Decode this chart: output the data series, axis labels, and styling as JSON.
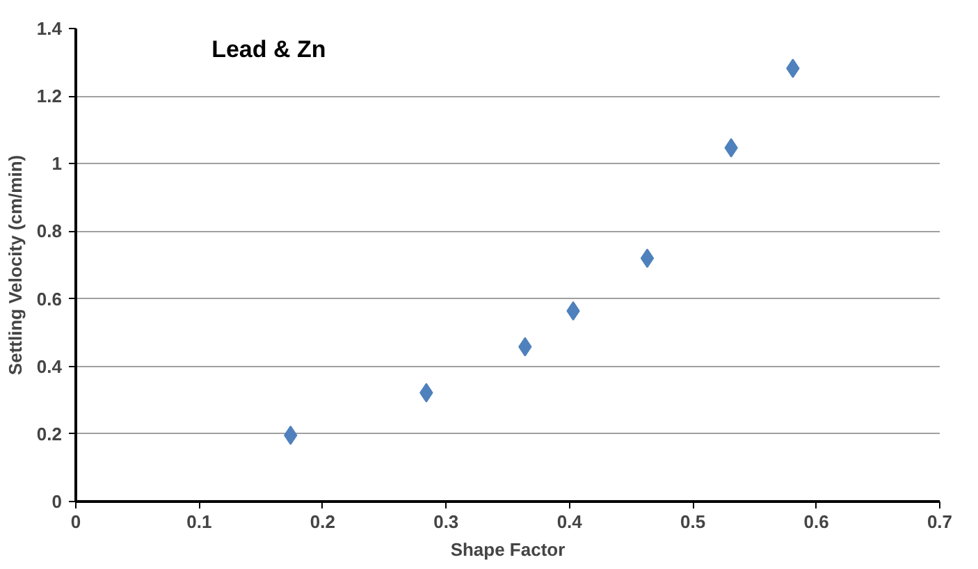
{
  "chart_data": {
    "type": "scatter",
    "title": "Lead & Zn",
    "xlabel": "Shape Factor",
    "ylabel": "Settling Velocity (cm/min)",
    "x": [
      0.174,
      0.284,
      0.364,
      0.403,
      0.463,
      0.531,
      0.581
    ],
    "series": [
      {
        "color": "#4f81bd",
        "values": [
          0.196,
          0.322,
          0.458,
          0.564,
          0.72,
          1.047,
          1.282
        ]
      }
    ],
    "xlim": [
      0,
      0.7
    ],
    "xticks": [
      0,
      0.1,
      0.2,
      0.3,
      0.4,
      0.5,
      0.6,
      0.7
    ],
    "ylim": [
      0,
      1.4
    ],
    "yticks": [
      0,
      0.2,
      0.4,
      0.6,
      0.8,
      1,
      1.2,
      1.4
    ],
    "grid": "y",
    "marker": "diamond"
  }
}
